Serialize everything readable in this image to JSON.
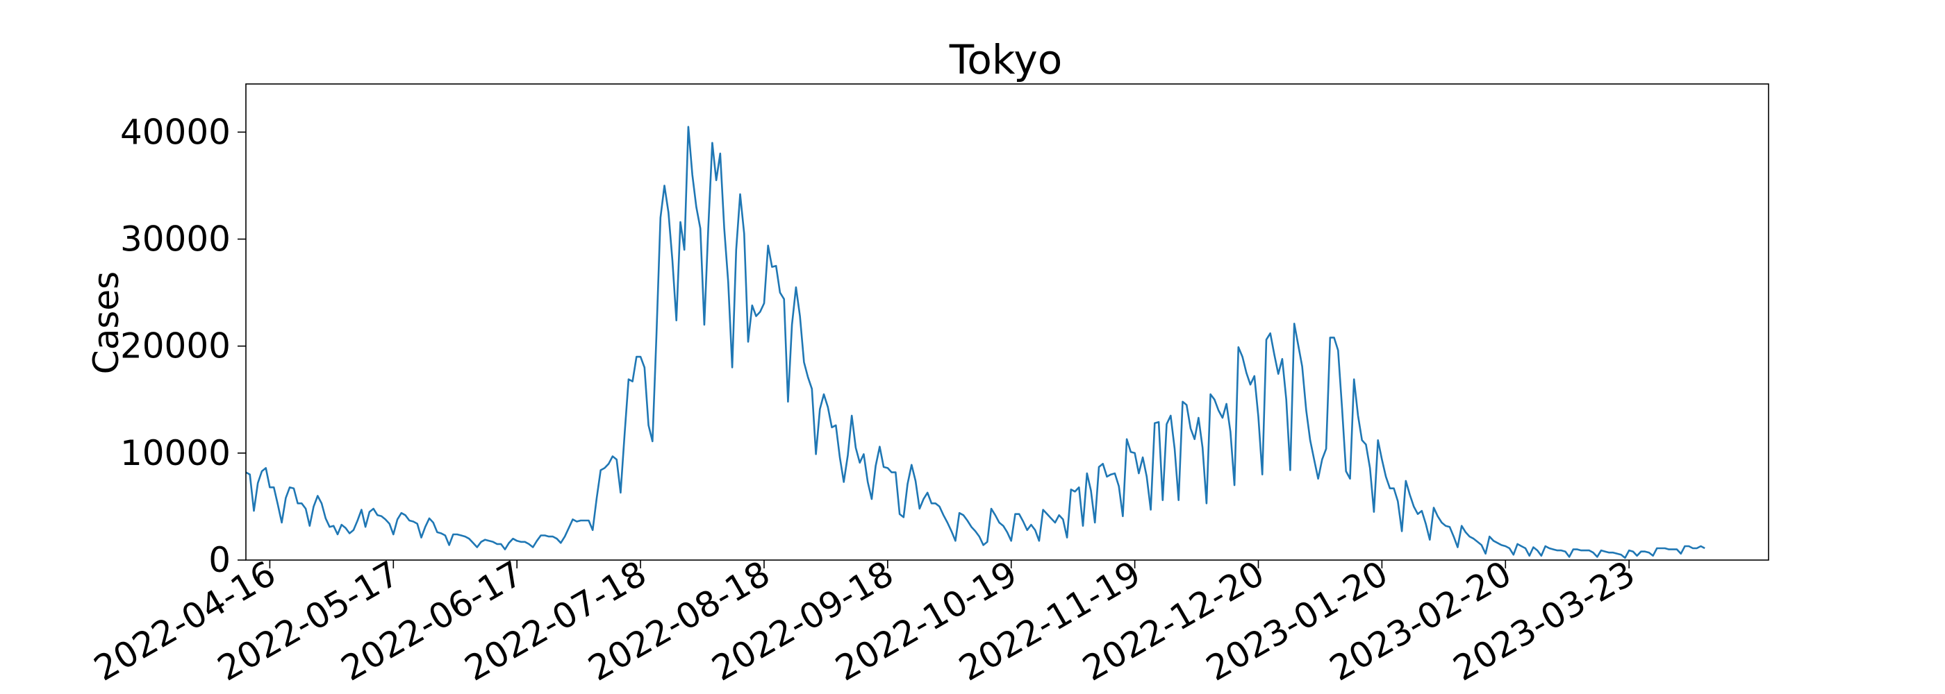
{
  "chart_data": {
    "type": "line",
    "title": "Tokyo",
    "xlabel": "",
    "ylabel": "Cases",
    "ylim": [
      0,
      44500
    ],
    "grid": false,
    "legend": "none",
    "line_color": "#1f77b4",
    "x_start": "2022-04-10",
    "x_end": "2023-04-27",
    "x_tick_labels": [
      "2022-04-16",
      "2022-05-17",
      "2022-06-17",
      "2022-07-18",
      "2022-08-18",
      "2022-09-18",
      "2022-10-19",
      "2022-11-19",
      "2022-12-20",
      "2023-01-20",
      "2023-02-20",
      "2023-03-23"
    ],
    "y_ticks": [
      0,
      10000,
      20000,
      30000,
      40000
    ],
    "y_tick_labels": [
      "0",
      "10000",
      "20000",
      "30000",
      "40000"
    ],
    "series": [
      {
        "name": "Tokyo",
        "start_date": "2022-04-10",
        "values": [
          8200,
          8000,
          4600,
          7200,
          8300,
          8600,
          6800,
          6800,
          5200,
          3500,
          5800,
          6800,
          6700,
          5300,
          5300,
          4800,
          3200,
          5000,
          6000,
          5300,
          3900,
          3100,
          3200,
          2400,
          3300,
          3000,
          2500,
          2800,
          3700,
          4700,
          3100,
          4500,
          4800,
          4200,
          4100,
          3800,
          3400,
          2400,
          3800,
          4400,
          4200,
          3700,
          3600,
          3400,
          2100,
          3100,
          3900,
          3500,
          2600,
          2500,
          2300,
          1400,
          2400,
          2400,
          2300,
          2200,
          2000,
          1600,
          1200,
          1700,
          1900,
          1800,
          1700,
          1500,
          1500,
          1000,
          1600,
          2000,
          1800,
          1700,
          1700,
          1500,
          1200,
          1800,
          2300,
          2300,
          2200,
          2200,
          2000,
          1600,
          2200,
          3000,
          3800,
          3600,
          3700,
          3700,
          3700,
          2800,
          5800,
          8400,
          8600,
          9000,
          9700,
          9400,
          6300,
          11700,
          16900,
          16700,
          19000,
          19000,
          18000,
          12600,
          11100,
          21000,
          32000,
          35000,
          32500,
          28000,
          22400,
          31600,
          29000,
          40500,
          36000,
          33000,
          31000,
          22000,
          31000,
          39000,
          35500,
          38000,
          31000,
          26000,
          18000,
          29000,
          34200,
          30500,
          20400,
          23800,
          22800,
          23200,
          24000,
          29400,
          27400,
          27500,
          25000,
          24400,
          14800,
          22000,
          25500,
          22800,
          18500,
          17100,
          16000,
          9900,
          14100,
          15500,
          14300,
          12400,
          12600,
          9600,
          7300,
          9800,
          13500,
          10500,
          9100,
          9900,
          7300,
          5700,
          8800,
          10600,
          8700,
          8600,
          8200,
          8200,
          4300,
          4000,
          7100,
          8900,
          7400,
          4800,
          5700,
          6300,
          5300,
          5300,
          5000,
          4200,
          3500,
          2700,
          1800,
          4400,
          4200,
          3700,
          3100,
          2700,
          2200,
          1400,
          1700,
          4800,
          4200,
          3500,
          3200,
          2600,
          1800,
          4300,
          4300,
          3600,
          2800,
          3300,
          2800,
          1800,
          4700,
          4300,
          3900,
          3500,
          4200,
          3800,
          2100,
          6600,
          6400,
          6800,
          3200,
          8100,
          6500,
          3500,
          8700,
          9000,
          7800,
          8000,
          8100,
          6900,
          4100,
          11300,
          10100,
          10000,
          8100,
          9600,
          7800,
          4700,
          12800,
          12900,
          5600,
          12700,
          13500,
          10400,
          5600,
          14800,
          14500,
          12300,
          11300,
          13300,
          10500,
          5300,
          15500,
          15000,
          14000,
          13300,
          14600,
          12000,
          7000,
          19900,
          19000,
          17500,
          16400,
          17200,
          13400,
          8000,
          20600,
          21200,
          19200,
          17400,
          18800,
          15000,
          8400,
          22100,
          20100,
          18100,
          14000,
          11200,
          9400,
          7600,
          9400,
          10400,
          20800,
          20800,
          19600,
          14200,
          8300,
          7600,
          16900,
          13500,
          11200,
          10800,
          8600,
          4500,
          11200,
          9400,
          7800,
          6700,
          6700,
          5500,
          2700,
          7400,
          6100,
          5000,
          4300,
          4600,
          3400,
          1900,
          4900,
          4100,
          3500,
          3200,
          3100,
          2200,
          1200,
          3200,
          2600,
          2200,
          2000,
          1700,
          1400,
          600,
          2200,
          1800,
          1600,
          1400,
          1300,
          1100,
          500,
          1500,
          1300,
          1100,
          400,
          1200,
          900,
          400,
          1300,
          1100,
          1000,
          900,
          900,
          800,
          300,
          1000,
          1000,
          900,
          900,
          900,
          700,
          300,
          900,
          800,
          700,
          700,
          600,
          500,
          200,
          900,
          800,
          400,
          800,
          800,
          700,
          400,
          1100,
          1100,
          1100,
          1000,
          1000,
          1000,
          600,
          1300,
          1300,
          1100,
          1100,
          1300,
          1100
        ]
      }
    ]
  }
}
